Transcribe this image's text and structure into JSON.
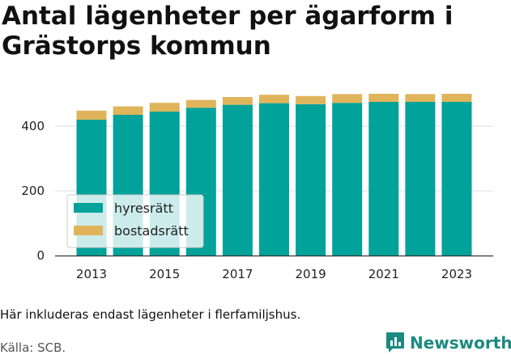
{
  "title_lines": [
    "Antal lägenheter per ägarform i",
    "Grästorps kommun"
  ],
  "note": "Här inkluderas endast lägenheter i flerfamiljshus.",
  "source": "Källa: SCB.",
  "brand": {
    "name": "Newsworthy",
    "icon": "bar-chart-speech-bubble-icon",
    "color": "#1c8a80"
  },
  "chart_data": {
    "type": "bar",
    "stacked": true,
    "categories": [
      "2013",
      "2014",
      "2015",
      "2016",
      "2017",
      "2018",
      "2019",
      "2020",
      "2021",
      "2022",
      "2023"
    ],
    "x_tick_labels": [
      "2013",
      "2015",
      "2017",
      "2019",
      "2021",
      "2023"
    ],
    "series": [
      {
        "name": "hyresrätt",
        "color": "#00a29a",
        "values": [
          420,
          435,
          445,
          457,
          466,
          471,
          468,
          472,
          475,
          475,
          475
        ]
      },
      {
        "name": "bostadsrätt",
        "color": "#e0b45a",
        "values": [
          28,
          26,
          27,
          24,
          24,
          26,
          25,
          27,
          25,
          24,
          25
        ]
      }
    ],
    "ylim": [
      0,
      500
    ],
    "y_ticks": [
      0,
      200,
      400
    ],
    "grid": true,
    "legend_position": "bottom-left"
  }
}
